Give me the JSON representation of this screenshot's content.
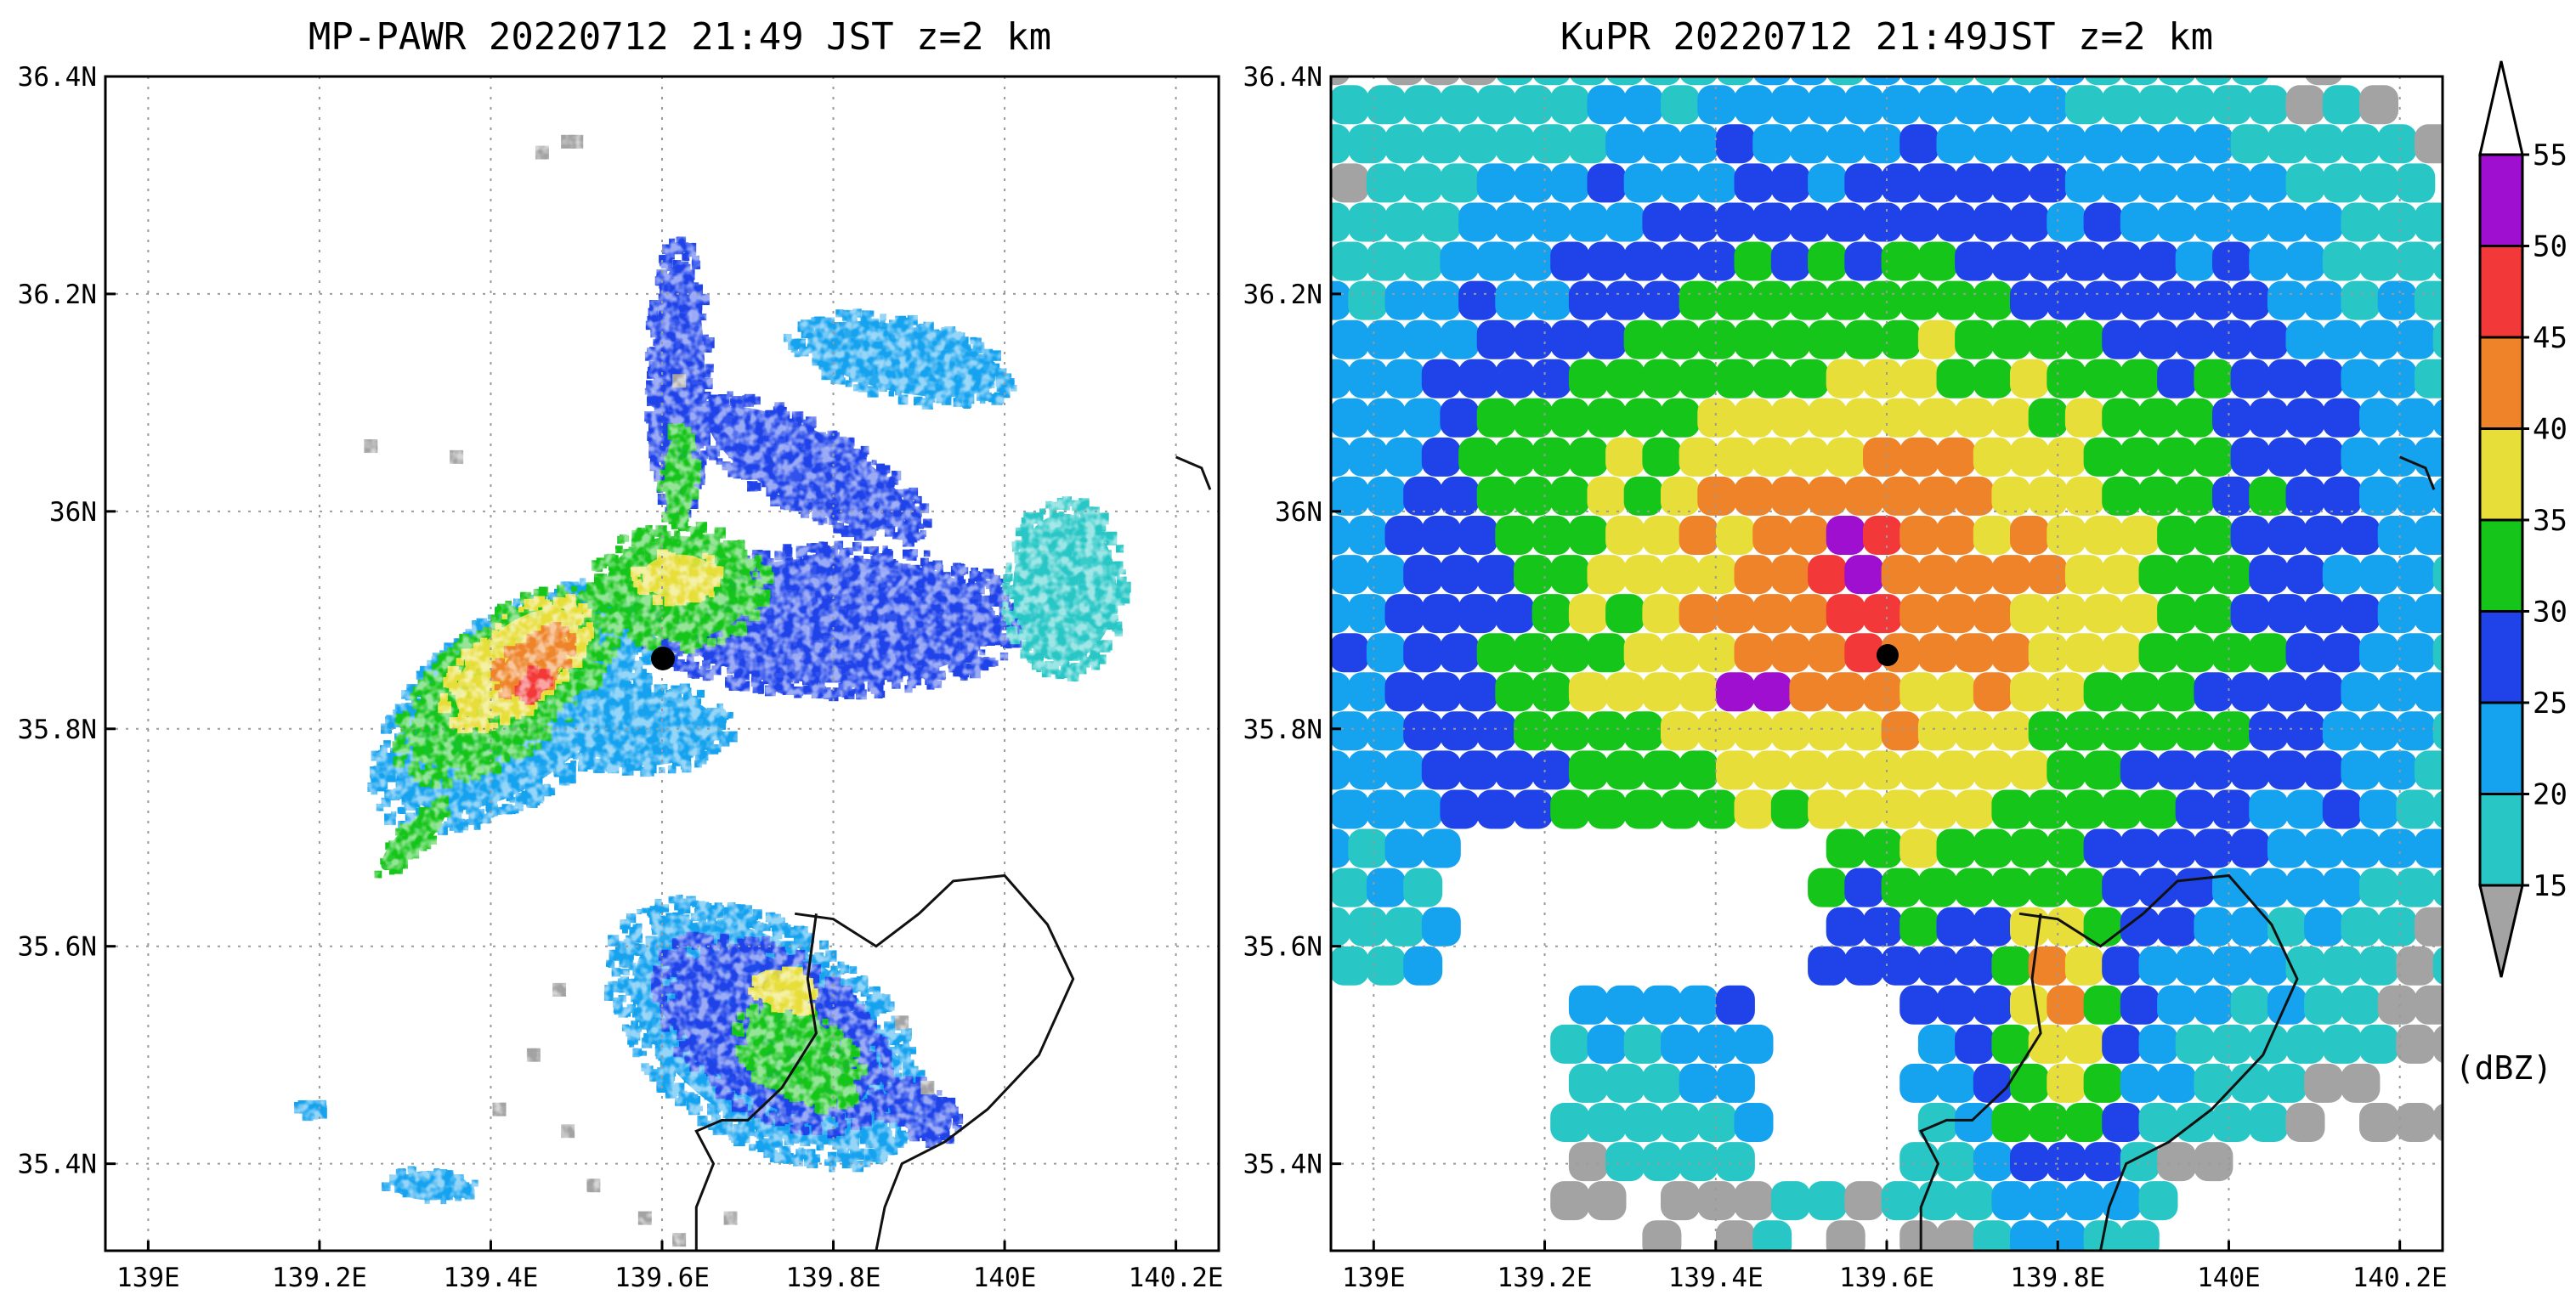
{
  "chart_data": [
    {
      "type": "heatmap",
      "title": "MP-PAWR 20220712 21:49 JST z=2 km",
      "xlim": [
        138.95,
        140.25
      ],
      "ylim": [
        35.32,
        36.4
      ],
      "xticks": [
        139.0,
        139.2,
        139.4,
        139.6,
        139.8,
        140.0,
        140.2
      ],
      "xticklabels": [
        "139E",
        "139.2E",
        "139.4E",
        "139.6E",
        "139.8E",
        "140E",
        "140.2E"
      ],
      "yticks": [
        35.4,
        35.6,
        35.8,
        36.0,
        36.2,
        36.4
      ],
      "yticklabels": [
        "35.4N",
        "35.6N",
        "35.8N",
        "36N",
        "36.2N",
        "36.4N"
      ],
      "grid": true,
      "radar_site": [
        139.61,
        35.86
      ],
      "echo_regions": [
        {
          "name": "southwest band outer",
          "center": [
            139.43,
            35.82
          ],
          "radius": [
            0.19,
            0.1
          ],
          "angle_deg": 38,
          "dbz": 22
        },
        {
          "name": "southwest band green",
          "center": [
            139.42,
            35.84
          ],
          "radius": [
            0.15,
            0.075
          ],
          "angle_deg": 40,
          "dbz": 32
        },
        {
          "name": "southwest band yellow",
          "center": [
            139.43,
            35.86
          ],
          "radius": [
            0.1,
            0.05
          ],
          "angle_deg": 40,
          "dbz": 38
        },
        {
          "name": "southwest band core",
          "center": [
            139.45,
            35.86
          ],
          "radius": [
            0.055,
            0.03
          ],
          "angle_deg": 40,
          "dbz": 44
        },
        {
          "name": "southwest band peak",
          "center": [
            139.45,
            35.84
          ],
          "radius": [
            0.02,
            0.015
          ],
          "angle_deg": 40,
          "dbz": 48
        },
        {
          "name": "southwest tail",
          "center": [
            139.31,
            35.7
          ],
          "radius": [
            0.06,
            0.018
          ],
          "angle_deg": 45,
          "dbz": 32
        },
        {
          "name": "north arm",
          "center": [
            139.62,
            36.12
          ],
          "radius": [
            0.035,
            0.16
          ],
          "angle_deg": 0,
          "dbz": 26
        },
        {
          "name": "north arm green",
          "center": [
            139.62,
            36.03
          ],
          "radius": [
            0.02,
            0.06
          ],
          "angle_deg": 0,
          "dbz": 32
        },
        {
          "name": "northeast arm",
          "center": [
            139.77,
            36.04
          ],
          "radius": [
            0.15,
            0.05
          ],
          "angle_deg": -28,
          "dbz": 26
        },
        {
          "name": "east field",
          "center": [
            139.8,
            35.9
          ],
          "radius": [
            0.22,
            0.085
          ],
          "angle_deg": 0,
          "dbz": 26
        },
        {
          "name": "northeast light",
          "center": [
            139.88,
            36.14
          ],
          "radius": [
            0.13,
            0.045
          ],
          "angle_deg": -12,
          "dbz": 21
        },
        {
          "name": "east light edge",
          "center": [
            140.07,
            35.93
          ],
          "radius": [
            0.07,
            0.1
          ],
          "angle_deg": 0,
          "dbz": 17
        },
        {
          "name": "center core green",
          "center": [
            139.62,
            35.93
          ],
          "radius": [
            0.1,
            0.07
          ],
          "angle_deg": 0,
          "dbz": 32
        },
        {
          "name": "center core yellow",
          "center": [
            139.62,
            35.94
          ],
          "radius": [
            0.05,
            0.03
          ],
          "angle_deg": 0,
          "dbz": 38
        },
        {
          "name": "center light ring",
          "center": [
            139.58,
            35.8
          ],
          "radius": [
            0.1,
            0.05
          ],
          "angle_deg": 0,
          "dbz": 21
        },
        {
          "name": "south cluster outer",
          "center": [
            139.72,
            35.52
          ],
          "radius": [
            0.2,
            0.12
          ],
          "angle_deg": -35,
          "dbz": 21
        },
        {
          "name": "south cluster blue",
          "center": [
            139.73,
            35.52
          ],
          "radius": [
            0.15,
            0.09
          ],
          "angle_deg": -35,
          "dbz": 26
        },
        {
          "name": "south cluster green",
          "center": [
            139.76,
            35.5
          ],
          "radius": [
            0.08,
            0.05
          ],
          "angle_deg": -35,
          "dbz": 32
        },
        {
          "name": "south cluster yellow",
          "center": [
            139.74,
            35.56
          ],
          "radius": [
            0.04,
            0.025
          ],
          "angle_deg": -20,
          "dbz": 38
        },
        {
          "name": "south cluster east",
          "center": [
            139.9,
            35.45
          ],
          "radius": [
            0.05,
            0.03
          ],
          "angle_deg": -35,
          "dbz": 26
        },
        {
          "name": "southwest small",
          "center": [
            139.33,
            35.38
          ],
          "radius": [
            0.05,
            0.02
          ],
          "angle_deg": 0,
          "dbz": 20
        },
        {
          "name": "far west small",
          "center": [
            139.19,
            35.45
          ],
          "radius": [
            0.015,
            0.008
          ],
          "angle_deg": 0,
          "dbz": 24
        }
      ]
    },
    {
      "type": "heatmap",
      "title": "KuPR 20220712 21:49JST z=2 km",
      "xlim": [
        138.95,
        140.25
      ],
      "ylim": [
        35.32,
        36.4
      ],
      "xticks": [
        139.0,
        139.2,
        139.4,
        139.6,
        139.8,
        140.0,
        140.2
      ],
      "xticklabels": [
        "139E",
        "139.2E",
        "139.4E",
        "139.6E",
        "139.8E",
        "140E",
        "140.2E"
      ],
      "yticks": [
        35.4,
        35.6,
        35.8,
        36.0,
        36.2,
        36.4
      ],
      "yticklabels": [
        "35.4N",
        "35.6N",
        "35.8N",
        "36N",
        "36.2N",
        "36.4N"
      ],
      "grid": true,
      "radar_site": [
        139.61,
        35.86
      ],
      "footprint_dbz_peaks": [
        {
          "center": [
            139.56,
            35.95
          ],
          "dbz": 52
        },
        {
          "center": [
            139.45,
            35.83
          ],
          "dbz": 52
        }
      ]
    }
  ],
  "colorbar": {
    "ticks": [
      "15",
      "20",
      "25",
      "30",
      "35",
      "40",
      "45",
      "50",
      "55"
    ],
    "colors": [
      "#28c7c6",
      "#15a2ef",
      "#1f43e9",
      "#16c51a",
      "#e8de3a",
      "#ee8329",
      "#f23838",
      "#9e0fcf"
    ],
    "under_color": "#a3a3a3",
    "over_color": "#ffffff",
    "unit": "(dBZ)"
  },
  "coastline": {
    "inner": [
      [
        139.755,
        35.63
      ],
      [
        139.8,
        35.625
      ],
      [
        139.85,
        35.6
      ],
      [
        139.9,
        35.63
      ],
      [
        139.94,
        35.66
      ],
      [
        140.0,
        35.665
      ],
      [
        140.05,
        35.62
      ],
      [
        140.08,
        35.57
      ],
      [
        140.04,
        35.5
      ],
      [
        139.98,
        35.45
      ],
      [
        139.93,
        35.42
      ],
      [
        139.88,
        35.4
      ],
      [
        139.86,
        35.36
      ],
      [
        139.85,
        35.32
      ]
    ],
    "west": [
      [
        139.78,
        35.63
      ],
      [
        139.77,
        35.57
      ],
      [
        139.78,
        35.52
      ],
      [
        139.74,
        35.47
      ],
      [
        139.7,
        35.44
      ],
      [
        139.67,
        35.44
      ],
      [
        139.64,
        35.43
      ],
      [
        139.66,
        35.4
      ],
      [
        139.64,
        35.36
      ],
      [
        139.64,
        35.32
      ]
    ],
    "ne_fragment": [
      [
        140.2,
        36.05
      ],
      [
        140.23,
        36.04
      ],
      [
        140.24,
        36.02
      ]
    ]
  }
}
